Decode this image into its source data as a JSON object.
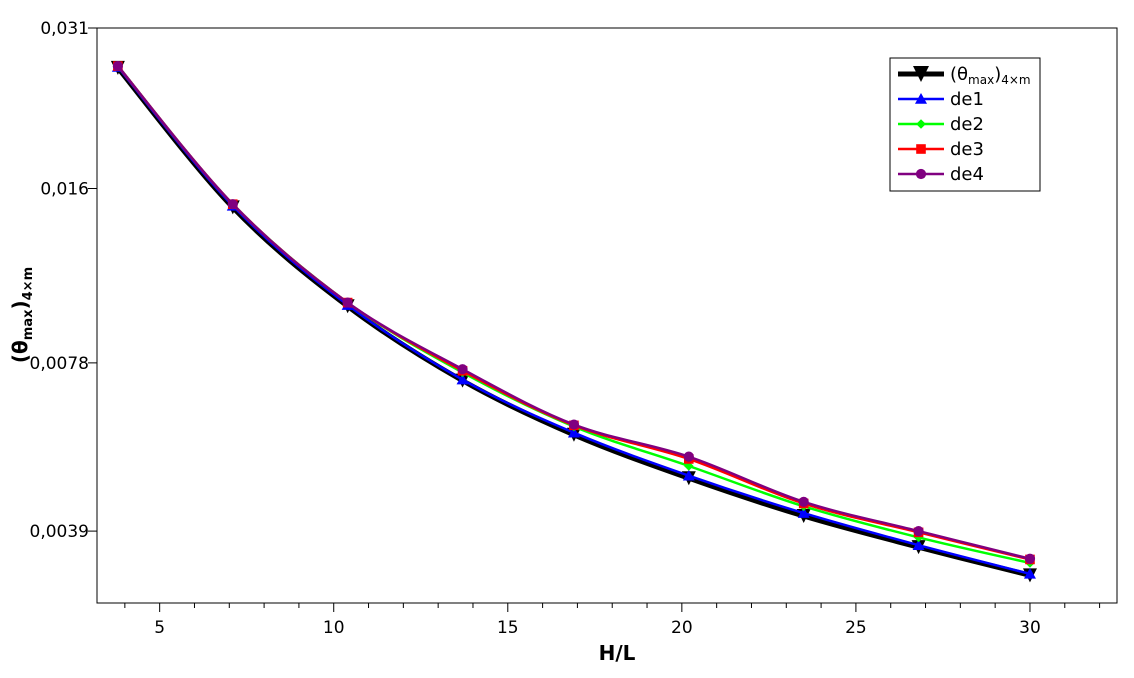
{
  "chart_data": {
    "type": "line",
    "xlabel": "H/L",
    "ylabel": "(θmax)4×m",
    "ylabel_parts": {
      "base": "(θ",
      "sub": "max",
      "close": ")",
      "sub2": "4×m"
    },
    "x": [
      3.8,
      7.1,
      10.4,
      13.7,
      16.9,
      20.2,
      23.5,
      26.8,
      30.0
    ],
    "xlim": [
      3.2,
      32.5
    ],
    "ylim": [
      0.0029,
      0.031
    ],
    "ylog": true,
    "xticks": [
      5,
      10,
      15,
      20,
      25,
      30
    ],
    "xtick_labels": [
      "5",
      "10",
      "15",
      "20",
      "25",
      "30"
    ],
    "yticks": [
      0.031,
      0.016,
      0.0078,
      0.0039
    ],
    "ytick_labels": [
      "0,031",
      "0,016",
      "0,0078",
      "0,0039"
    ],
    "grid": false,
    "legend_placement": "top-right",
    "series": [
      {
        "name": "(θmax)4×m",
        "legend_parts": {
          "base": "(θ",
          "sub": "max",
          "close": ")",
          "sub2": "4×m"
        },
        "color": "#000000",
        "marker": "triangle-down",
        "width": 5,
        "values": [
          0.0263,
          0.0148,
          0.00985,
          0.00725,
          0.0058,
          0.00485,
          0.00415,
          0.00365,
          0.00325
        ]
      },
      {
        "name": "de1",
        "color": "#0000ff",
        "marker": "triangle-up",
        "width": 2.5,
        "values": [
          0.0264,
          0.0149,
          0.0099,
          0.00728,
          0.00585,
          0.0049,
          0.0042,
          0.00368,
          0.00327
        ]
      },
      {
        "name": "de2",
        "color": "#00ff00",
        "marker": "diamond",
        "width": 2.5,
        "values": [
          0.0265,
          0.015,
          0.01,
          0.0075,
          0.006,
          0.0051,
          0.00432,
          0.0038,
          0.00342
        ]
      },
      {
        "name": "de3",
        "color": "#ff0000",
        "marker": "square",
        "width": 2.5,
        "values": [
          0.0265,
          0.015,
          0.01,
          0.00755,
          0.00603,
          0.00525,
          0.00437,
          0.00388,
          0.00347
        ]
      },
      {
        "name": "de4",
        "color": "#800080",
        "marker": "circle",
        "width": 2.5,
        "values": [
          0.0265,
          0.015,
          0.01,
          0.0076,
          0.00605,
          0.0053,
          0.0044,
          0.0039,
          0.00348
        ]
      }
    ]
  }
}
